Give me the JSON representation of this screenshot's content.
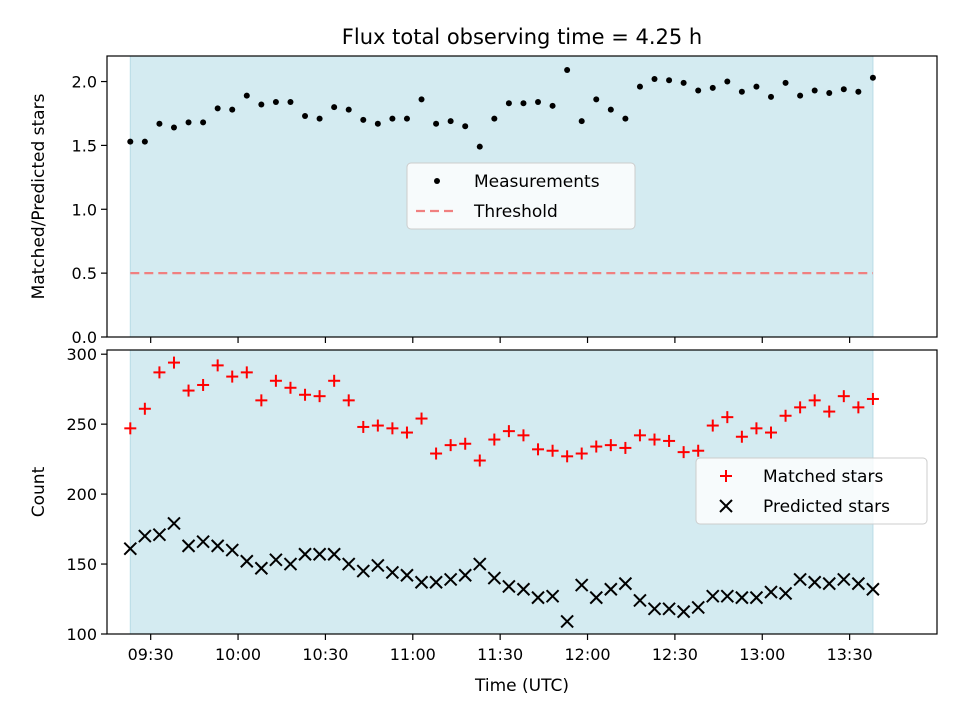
{
  "title": "Flux total observing time = 4.25 h",
  "colors": {
    "shade": "#d4ebf1",
    "measurement": "#000000",
    "threshold": "#f08080",
    "matched": "#ff0000",
    "predicted": "#000000"
  },
  "chart_data": [
    {
      "type": "scatter",
      "ylabel": "Matched/Predicted stars",
      "xlim": [
        "09:15",
        "14:00"
      ],
      "ylim": [
        0,
        2.2
      ],
      "yticks": [
        "0.0",
        "0.5",
        "1.0",
        "1.5",
        "2.0"
      ],
      "shaded_span": [
        "09:23",
        "13:38"
      ],
      "legend": {
        "position": "center",
        "entries": [
          "Measurements",
          "Threshold"
        ]
      },
      "threshold": 0.5,
      "series": [
        {
          "name": "Measurements",
          "x": [
            "09:23",
            "09:28",
            "09:33",
            "09:38",
            "09:43",
            "09:48",
            "09:53",
            "09:58",
            "10:03",
            "10:08",
            "10:13",
            "10:18",
            "10:23",
            "10:28",
            "10:33",
            "10:38",
            "10:43",
            "10:48",
            "10:53",
            "10:58",
            "11:03",
            "11:08",
            "11:13",
            "11:18",
            "11:23",
            "11:28",
            "11:33",
            "11:38",
            "11:43",
            "11:48",
            "11:53",
            "11:58",
            "12:03",
            "12:08",
            "12:13",
            "12:18",
            "12:23",
            "12:28",
            "12:33",
            "12:38",
            "12:43",
            "12:48",
            "12:53",
            "12:58",
            "13:03",
            "13:08",
            "13:13",
            "13:18",
            "13:23",
            "13:28",
            "13:33",
            "13:38"
          ],
          "y": [
            1.53,
            1.53,
            1.67,
            1.64,
            1.68,
            1.68,
            1.79,
            1.78,
            1.89,
            1.82,
            1.84,
            1.84,
            1.73,
            1.71,
            1.8,
            1.78,
            1.7,
            1.67,
            1.71,
            1.71,
            1.86,
            1.67,
            1.69,
            1.65,
            1.49,
            1.71,
            1.83,
            1.83,
            1.84,
            1.81,
            2.09,
            1.69,
            1.86,
            1.78,
            1.71,
            1.96,
            2.02,
            2.01,
            1.99,
            1.93,
            1.95,
            2.0,
            1.92,
            1.96,
            1.88,
            1.99,
            1.89,
            1.93,
            1.91,
            1.94,
            1.92,
            2.03
          ]
        }
      ]
    },
    {
      "type": "scatter",
      "xlabel": "Time (UTC)",
      "ylabel": "Count",
      "xlim": [
        "09:15",
        "14:00"
      ],
      "ylim": [
        100,
        303
      ],
      "yticks": [
        "100",
        "150",
        "200",
        "250",
        "300"
      ],
      "xticks": [
        "09:30",
        "10:00",
        "10:30",
        "11:00",
        "11:30",
        "12:00",
        "12:30",
        "13:00",
        "13:30"
      ],
      "shaded_span": [
        "09:23",
        "13:38"
      ],
      "legend": {
        "position": "right",
        "entries": [
          "Matched stars",
          "Predicted stars"
        ]
      },
      "series": [
        {
          "name": "Matched stars",
          "x": [
            "09:23",
            "09:28",
            "09:33",
            "09:38",
            "09:43",
            "09:48",
            "09:53",
            "09:58",
            "10:03",
            "10:08",
            "10:13",
            "10:18",
            "10:23",
            "10:28",
            "10:33",
            "10:38",
            "10:43",
            "10:48",
            "10:53",
            "10:58",
            "11:03",
            "11:08",
            "11:13",
            "11:18",
            "11:23",
            "11:28",
            "11:33",
            "11:38",
            "11:43",
            "11:48",
            "11:53",
            "11:58",
            "12:03",
            "12:08",
            "12:13",
            "12:18",
            "12:23",
            "12:28",
            "12:33",
            "12:38",
            "12:43",
            "12:48",
            "12:53",
            "12:58",
            "13:03",
            "13:08",
            "13:13",
            "13:18",
            "13:23",
            "13:28",
            "13:33",
            "13:38"
          ],
          "y": [
            247,
            261,
            287,
            294,
            274,
            278,
            292,
            284,
            287,
            267,
            281,
            276,
            271,
            270,
            281,
            267,
            248,
            249,
            247,
            244,
            254,
            229,
            235,
            236,
            224,
            239,
            245,
            242,
            232,
            231,
            227,
            229,
            234,
            235,
            233,
            242,
            239,
            238,
            230,
            231,
            249,
            255,
            241,
            247,
            244,
            256,
            262,
            267,
            259,
            270,
            262,
            268
          ]
        },
        {
          "name": "Predicted stars",
          "x": [
            "09:23",
            "09:28",
            "09:33",
            "09:38",
            "09:43",
            "09:48",
            "09:53",
            "09:58",
            "10:03",
            "10:08",
            "10:13",
            "10:18",
            "10:23",
            "10:28",
            "10:33",
            "10:38",
            "10:43",
            "10:48",
            "10:53",
            "10:58",
            "11:03",
            "11:08",
            "11:13",
            "11:18",
            "11:23",
            "11:28",
            "11:33",
            "11:38",
            "11:43",
            "11:48",
            "11:53",
            "11:58",
            "12:03",
            "12:08",
            "12:13",
            "12:18",
            "12:23",
            "12:28",
            "12:33",
            "12:38",
            "12:43",
            "12:48",
            "12:53",
            "12:58",
            "13:03",
            "13:08",
            "13:13",
            "13:18",
            "13:23",
            "13:28",
            "13:33",
            "13:38"
          ],
          "y": [
            161,
            170,
            171,
            179,
            163,
            166,
            163,
            160,
            152,
            147,
            153,
            150,
            157,
            157,
            157,
            150,
            145,
            149,
            144,
            142,
            137,
            137,
            139,
            142,
            150,
            140,
            134,
            132,
            126,
            127,
            109,
            135,
            126,
            132,
            136,
            124,
            118,
            118,
            116,
            119,
            127,
            127,
            126,
            126,
            130,
            129,
            139,
            137,
            136,
            139,
            136,
            132
          ]
        }
      ]
    }
  ]
}
